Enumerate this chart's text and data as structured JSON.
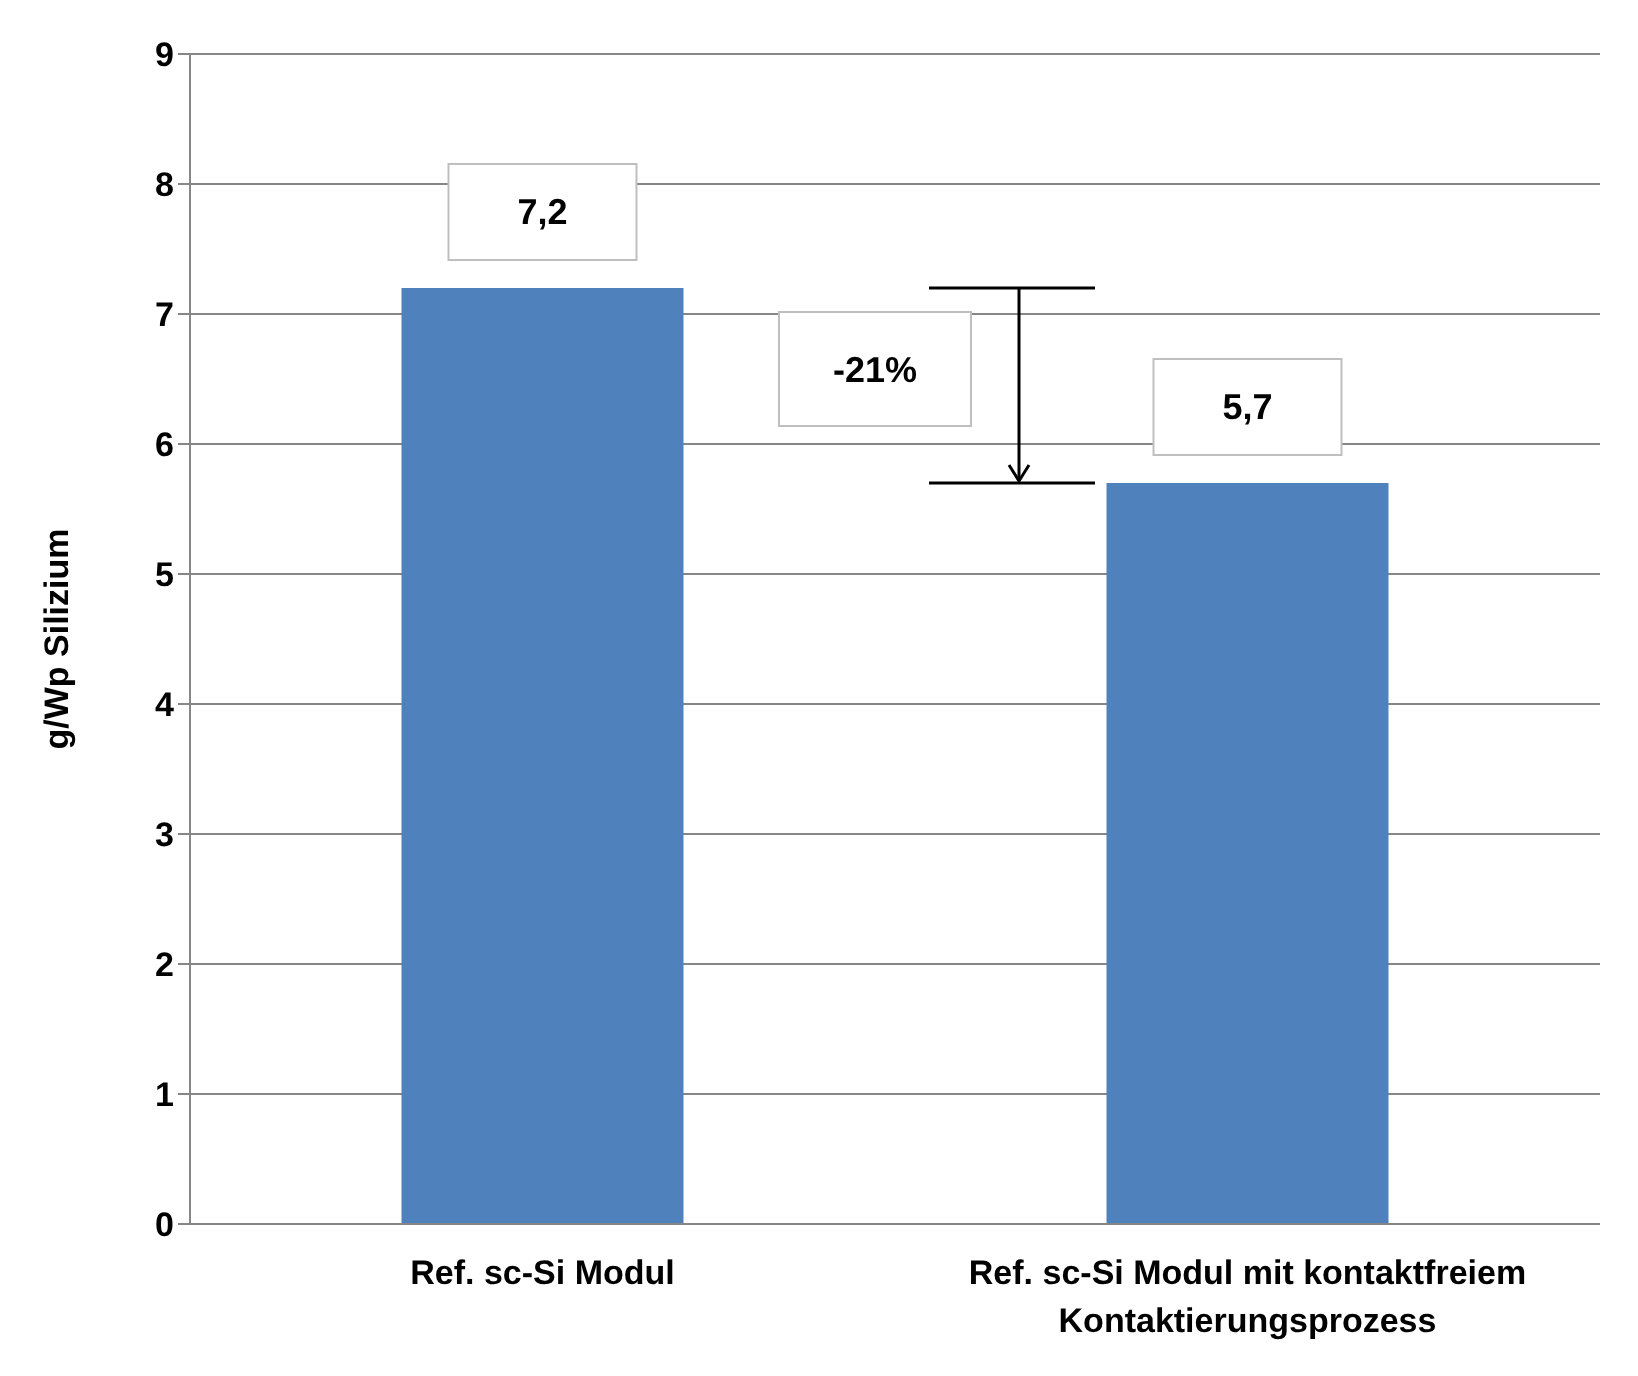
{
  "chart_data": {
    "type": "bar",
    "ylabel": "g/Wp Silizium",
    "categories": [
      "Ref. sc-Si Modul",
      "Ref. sc-Si Modul mit kontaktfreiem Kontaktierungsprozess"
    ],
    "values": [
      7.2,
      5.7
    ],
    "value_labels": [
      "7,2",
      "5,7"
    ],
    "color": "#4f81bd",
    "ylim": [
      0,
      9
    ],
    "yticks": [
      0,
      1,
      2,
      3,
      4,
      5,
      6,
      7,
      8,
      9
    ],
    "grid": "y",
    "legend": false,
    "annotations": [
      "-21%"
    ]
  }
}
